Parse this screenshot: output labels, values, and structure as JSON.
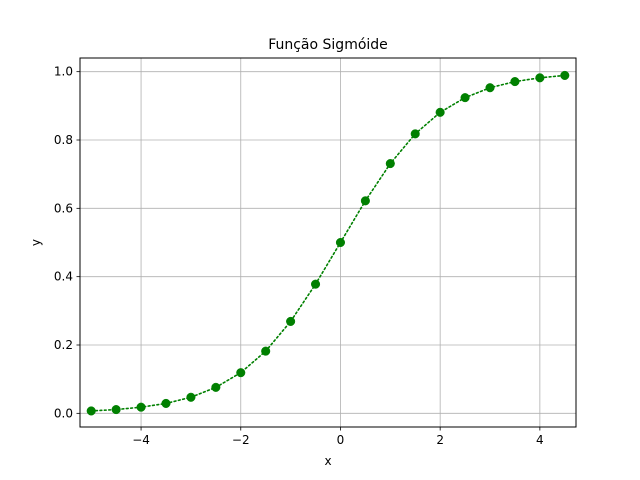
{
  "chart_data": {
    "type": "line",
    "title": "Função Sigmóide",
    "xlabel": "x",
    "ylabel": "y",
    "xlim": [
      -5.225,
      4.725
    ],
    "ylim": [
      -0.04,
      1.04
    ],
    "grid": true,
    "x_ticks": [
      -4,
      -2,
      0,
      2,
      4
    ],
    "x_tick_labels": [
      "−4",
      "−2",
      "0",
      "2",
      "4"
    ],
    "y_ticks": [
      0.0,
      0.2,
      0.4,
      0.6,
      0.8,
      1.0
    ],
    "y_tick_labels": [
      "0.0",
      "0.2",
      "0.4",
      "0.6",
      "0.8",
      "1.0"
    ],
    "series": [
      {
        "color": "#008000",
        "line_style": "dotted",
        "marker": "circle",
        "x": [
          -5.0,
          -4.5,
          -4.0,
          -3.5,
          -3.0,
          -2.5,
          -2.0,
          -1.5,
          -1.0,
          -0.5,
          0.0,
          0.5,
          1.0,
          1.5,
          2.0,
          2.5,
          3.0,
          3.5,
          4.0,
          4.5
        ],
        "y": [
          0.007,
          0.011,
          0.018,
          0.029,
          0.047,
          0.076,
          0.119,
          0.182,
          0.269,
          0.378,
          0.5,
          0.622,
          0.731,
          0.818,
          0.881,
          0.924,
          0.953,
          0.971,
          0.982,
          0.989
        ]
      }
    ]
  }
}
